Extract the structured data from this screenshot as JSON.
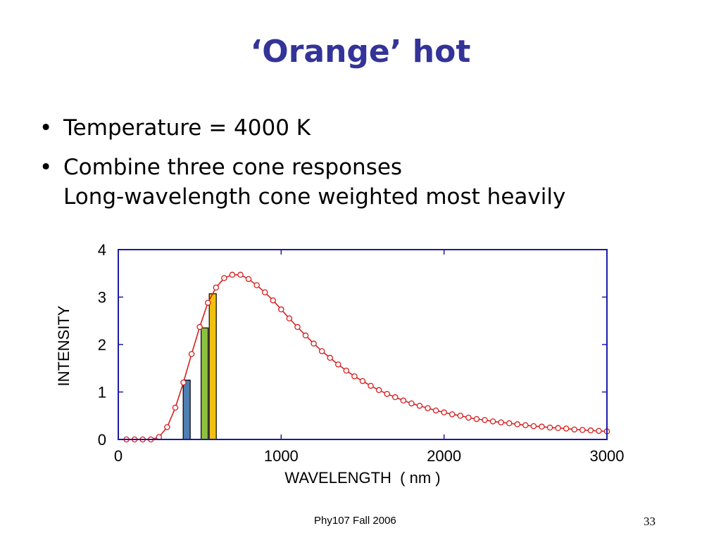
{
  "slide": {
    "title": "‘Orange’ hot",
    "bullets": [
      {
        "lines": [
          "Temperature = 4000 K"
        ]
      },
      {
        "lines": [
          "Combine three cone responses",
          "Long-wavelength cone weighted most heavily"
        ]
      }
    ],
    "footer": "Phy107 Fall 2006",
    "page_number": "33"
  },
  "colors": {
    "title": "#333399",
    "axis": "#1a1aa8",
    "curve": "#d42020",
    "bar_blue": "#4f7fb3",
    "bar_green": "#8dc03f",
    "bar_yellow": "#f2c10f"
  },
  "chart_data": {
    "type": "line",
    "xlabel": "WAVELENGTH  ( nm )",
    "ylabel": "INTENSITY",
    "xlim": [
      0,
      3000
    ],
    "ylim": [
      0,
      4
    ],
    "x_ticks": [
      0,
      1000,
      2000,
      3000
    ],
    "y_ticks": [
      0,
      1,
      2,
      3,
      4
    ],
    "grid": false,
    "series": [
      {
        "marker": "circle",
        "color": "#d42020",
        "x": [
          50,
          100,
          150,
          200,
          250,
          300,
          350,
          400,
          450,
          500,
          550,
          600,
          650,
          700,
          750,
          800,
          850,
          900,
          950,
          1000,
          1050,
          1100,
          1150,
          1200,
          1250,
          1300,
          1350,
          1400,
          1450,
          1500,
          1550,
          1600,
          1650,
          1700,
          1750,
          1800,
          1850,
          1900,
          1950,
          2000,
          2050,
          2100,
          2150,
          2200,
          2250,
          2300,
          2350,
          2400,
          2450,
          2500,
          2550,
          2600,
          2650,
          2700,
          2750,
          2800,
          2850,
          2900,
          2950,
          3000
        ],
        "y": [
          0,
          0,
          0,
          0,
          0.05,
          0.26,
          0.67,
          1.2,
          1.8,
          2.37,
          2.88,
          3.2,
          3.4,
          3.47,
          3.47,
          3.38,
          3.25,
          3.1,
          2.93,
          2.74,
          2.55,
          2.37,
          2.19,
          2.02,
          1.86,
          1.72,
          1.58,
          1.45,
          1.33,
          1.23,
          1.13,
          1.04,
          0.96,
          0.89,
          0.82,
          0.76,
          0.71,
          0.66,
          0.61,
          0.57,
          0.53,
          0.5,
          0.46,
          0.43,
          0.41,
          0.38,
          0.36,
          0.34,
          0.32,
          0.3,
          0.28,
          0.27,
          0.25,
          0.24,
          0.23,
          0.21,
          0.2,
          0.19,
          0.18,
          0.17
        ]
      }
    ],
    "bars": [
      {
        "x": 420,
        "value": 1.25,
        "color": "#4f7fb3"
      },
      {
        "x": 530,
        "value": 2.35,
        "color": "#8dc03f"
      },
      {
        "x": 580,
        "value": 3.07,
        "color": "#f2c10f"
      }
    ]
  }
}
